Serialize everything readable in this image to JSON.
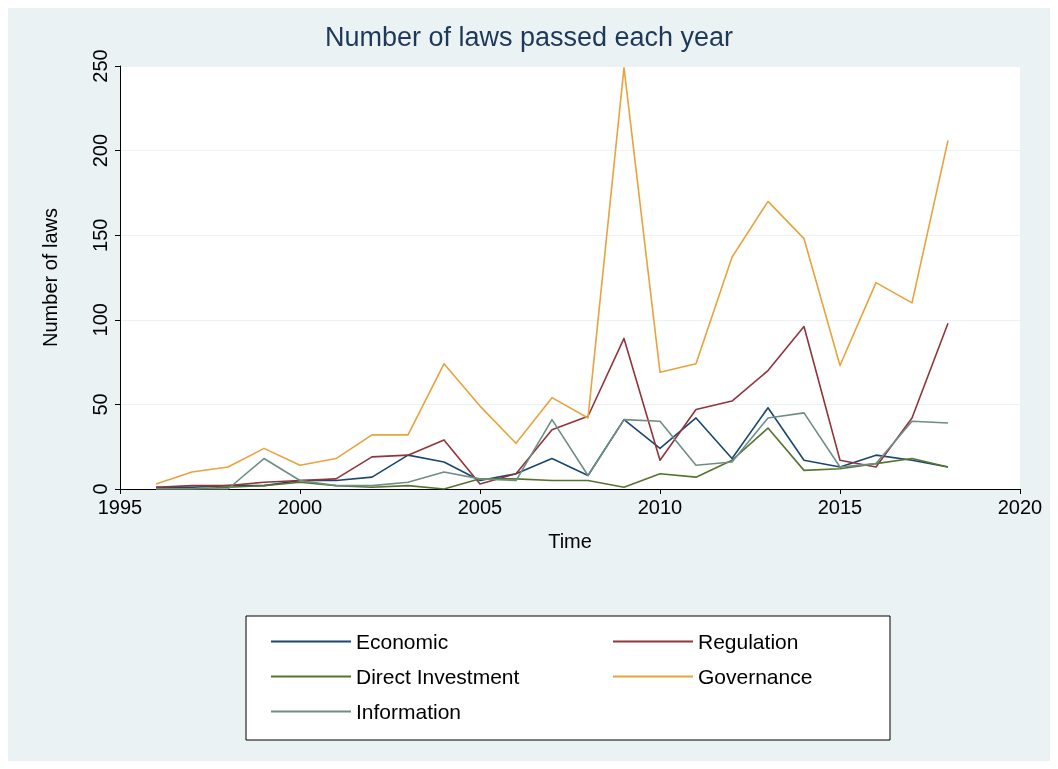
{
  "chart_data": {
    "type": "line",
    "title": "Number of laws passed each year",
    "xlabel": "Time",
    "ylabel": "Number of laws",
    "x": [
      1996,
      1997,
      1998,
      1999,
      2000,
      2001,
      2002,
      2003,
      2004,
      2005,
      2006,
      2007,
      2008,
      2009,
      2010,
      2011,
      2012,
      2013,
      2014,
      2015,
      2016,
      2017,
      2018
    ],
    "series": [
      {
        "name": "Economic",
        "color": "#1a476f",
        "values": [
          1,
          1,
          2,
          2,
          5,
          5,
          7,
          20,
          16,
          5,
          9,
          18,
          8,
          41,
          24,
          42,
          18,
          48,
          17,
          13,
          20,
          17,
          13
        ]
      },
      {
        "name": "Regulation",
        "color": "#90353b",
        "values": [
          1,
          2,
          2,
          4,
          5,
          6,
          19,
          20,
          29,
          3,
          9,
          35,
          43,
          89,
          17,
          47,
          52,
          70,
          96,
          17,
          13,
          42,
          98
        ]
      },
      {
        "name": "Direct Investment",
        "color": "#55752f",
        "values": [
          0,
          0,
          1,
          2,
          4,
          2,
          1,
          2,
          0,
          6,
          6,
          5,
          5,
          1,
          9,
          7,
          17,
          36,
          11,
          12,
          15,
          18,
          13
        ]
      },
      {
        "name": "Governance",
        "color": "#e8a33c",
        "values": [
          3,
          10,
          13,
          24,
          14,
          18,
          32,
          32,
          74,
          49,
          27,
          54,
          42,
          249,
          69,
          74,
          137,
          170,
          148,
          73,
          122,
          110,
          206
        ]
      },
      {
        "name": "Information",
        "color": "#6e8e84",
        "values": [
          0,
          0,
          0,
          18,
          5,
          2,
          2,
          4,
          10,
          6,
          5,
          41,
          8,
          41,
          40,
          14,
          16,
          42,
          45,
          13,
          15,
          40,
          39
        ]
      }
    ],
    "xlim": [
      1995,
      2020
    ],
    "xticks": [
      1995,
      2000,
      2005,
      2010,
      2015,
      2020
    ],
    "ylim": [
      0,
      250
    ],
    "yticks": [
      0,
      50,
      100,
      150,
      200,
      250
    ],
    "grid": "y",
    "legend": "bottom",
    "marker": "none",
    "line_style": "solid"
  }
}
